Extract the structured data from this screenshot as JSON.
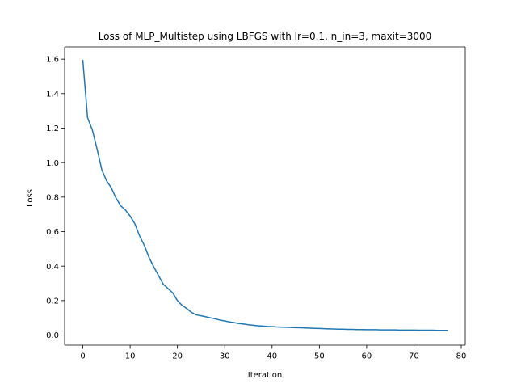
{
  "chart_data": {
    "type": "line",
    "title": "Loss of MLP_Multistep using LBFGS with lr=0.1, n_in=3, maxit=3000",
    "xlabel": "Iteration",
    "ylabel": "Loss",
    "xlim": [
      -3.85,
      80.85
    ],
    "ylim": [
      -0.0585,
      1.671
    ],
    "xticks": [
      0,
      10,
      20,
      30,
      40,
      50,
      60,
      70,
      80
    ],
    "xtick_labels": [
      "0",
      "10",
      "20",
      "30",
      "40",
      "50",
      "60",
      "70",
      "80"
    ],
    "yticks": [
      0.0,
      0.2,
      0.4,
      0.6,
      0.8,
      1.0,
      1.2,
      1.4,
      1.6
    ],
    "ytick_labels": [
      "0.0",
      "0.2",
      "0.4",
      "0.6",
      "0.8",
      "1.0",
      "1.2",
      "1.4",
      "1.6"
    ],
    "grid": false,
    "legend": "none",
    "series": [
      {
        "color": "#1f77b4",
        "x": [
          0,
          1,
          2,
          3,
          4,
          5,
          6,
          7,
          8,
          9,
          10,
          11,
          12,
          13,
          14,
          15,
          16,
          17,
          18,
          19,
          20,
          21,
          22,
          23,
          24,
          25,
          26,
          27,
          28,
          29,
          30,
          31,
          32,
          33,
          34,
          35,
          36,
          37,
          38,
          39,
          40,
          41,
          42,
          43,
          44,
          45,
          46,
          47,
          48,
          49,
          50,
          51,
          52,
          53,
          54,
          55,
          56,
          57,
          58,
          59,
          60,
          61,
          62,
          63,
          64,
          65,
          66,
          67,
          68,
          69,
          70,
          71,
          72,
          73,
          74,
          75,
          76,
          77
        ],
        "y": [
          1.593,
          1.26,
          1.19,
          1.08,
          0.96,
          0.895,
          0.855,
          0.795,
          0.75,
          0.725,
          0.69,
          0.645,
          0.575,
          0.52,
          0.45,
          0.395,
          0.345,
          0.295,
          0.27,
          0.245,
          0.2,
          0.172,
          0.153,
          0.131,
          0.117,
          0.112,
          0.106,
          0.1,
          0.094,
          0.087,
          0.082,
          0.076,
          0.072,
          0.067,
          0.064,
          0.06,
          0.057,
          0.054,
          0.052,
          0.05,
          0.049,
          0.047,
          0.046,
          0.045,
          0.044,
          0.043,
          0.042,
          0.041,
          0.04,
          0.039,
          0.038,
          0.037,
          0.036,
          0.035,
          0.034,
          0.034,
          0.033,
          0.033,
          0.032,
          0.032,
          0.031,
          0.031,
          0.031,
          0.03,
          0.03,
          0.03,
          0.03,
          0.029,
          0.029,
          0.029,
          0.029,
          0.028,
          0.028,
          0.028,
          0.028,
          0.027,
          0.027,
          0.027
        ]
      }
    ]
  }
}
